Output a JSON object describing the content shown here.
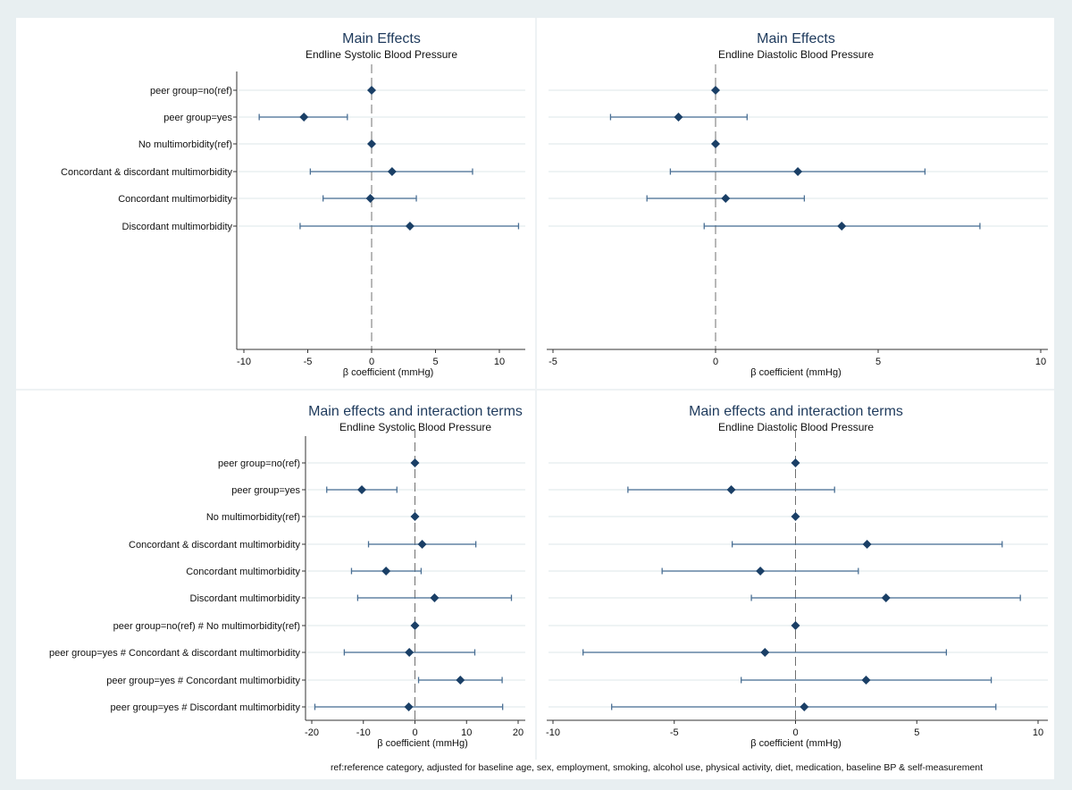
{
  "footnote": "ref:reference category, adjusted for baseline age, sex, employment, smoking, alcohol use, physical activity, diet, medication, baseline BP & self-measurement",
  "colors": {
    "marker": "#1a3f66",
    "ci": "#4a6f94",
    "background": "#e8eff1",
    "panel": "#ffffff",
    "refline": "#707070"
  },
  "chart_data": [
    {
      "type": "coefficient-plot",
      "title": "Main Effects",
      "subtitle": "Endline Systolic Blood Pressure",
      "xlabel": "β coefficient (mmHg)",
      "xlim": [
        -10.5,
        12
      ],
      "xticks": [
        -10,
        -5,
        0,
        5,
        10
      ],
      "reference_line": 0,
      "categories": [
        "peer group=no(ref)",
        "peer group=yes",
        "No multimorbidity(ref)",
        "Concordant & discordant multimorbidity",
        "Concordant multimorbidity",
        "Discordant multimorbidity"
      ],
      "estimate": [
        0,
        -5.3,
        0,
        1.6,
        -0.1,
        3.0
      ],
      "ci_low": [
        null,
        -8.8,
        null,
        -4.8,
        -3.8,
        -5.6
      ],
      "ci_high": [
        null,
        -1.9,
        null,
        7.9,
        3.5,
        11.5
      ]
    },
    {
      "type": "coefficient-plot",
      "title": "Main Effects",
      "subtitle": "Endline Diastolic Blood Pressure",
      "xlabel": "β coefficient (mmHg)",
      "xlim": [
        -5.2,
        10.2
      ],
      "xticks": [
        -5,
        0,
        5,
        10
      ],
      "reference_line": 0,
      "categories": [
        "peer group=no(ref)",
        "peer group=yes",
        "No multimorbidity(ref)",
        "Concordant & discordant multimorbidity",
        "Concordant multimorbidity",
        "Discordant multimorbidity"
      ],
      "estimate": [
        0,
        -1.14,
        0,
        2.53,
        0.31,
        3.88
      ],
      "ci_low": [
        null,
        -3.23,
        null,
        -1.39,
        -2.11,
        -0.35
      ],
      "ci_high": [
        null,
        0.97,
        null,
        6.44,
        2.73,
        8.13
      ]
    },
    {
      "type": "coefficient-plot",
      "title": "Main effects and interaction terms",
      "subtitle": "Endline Systolic Blood Pressure",
      "xlabel": "β coefficient (mmHg)",
      "xlim": [
        -21.3,
        21.2
      ],
      "xticks": [
        -20,
        -10,
        0,
        10,
        20
      ],
      "reference_line": 0,
      "categories": [
        "peer group=no(ref)",
        "peer group=yes",
        "No multimorbidity(ref)",
        "Concordant & discordant multimorbidity",
        "Concordant multimorbidity",
        "Discordant multimorbidity",
        "peer group=no(ref) # No multimorbidity(ref)",
        "peer group=yes # Concordant & discordant multimorbidity",
        "peer group=yes # Concordant multimorbidity",
        "peer group=yes # Discordant multimorbidity"
      ],
      "estimate": [
        0,
        -10.3,
        0,
        1.4,
        -5.6,
        3.8,
        0,
        -1.1,
        8.8,
        -1.2
      ],
      "ci_low": [
        null,
        -17.1,
        null,
        -9.0,
        -12.3,
        -11.1,
        null,
        -13.7,
        0.7,
        -19.4
      ],
      "ci_high": [
        null,
        -3.5,
        null,
        11.8,
        1.2,
        18.7,
        null,
        11.6,
        16.9,
        17.0
      ]
    },
    {
      "type": "coefficient-plot",
      "title": "Main effects and interaction terms",
      "subtitle": "Endline Diastolic Blood Pressure",
      "xlabel": "β coefficient (mmHg)",
      "xlim": [
        -10.3,
        10.3
      ],
      "xticks": [
        -10,
        -5,
        0,
        5,
        10
      ],
      "reference_line": 0,
      "categories": [
        "peer group=no(ref)",
        "peer group=yes",
        "No multimorbidity(ref)",
        "Concordant & discordant multimorbidity",
        "Concordant multimorbidity",
        "Discordant multimorbidity",
        "peer group=no(ref) # No multimorbidity(ref)",
        "peer group=yes # Concordant & discordant multimorbidity",
        "peer group=yes # Concordant multimorbidity",
        "peer group=yes # Discordant multimorbidity"
      ],
      "estimate": [
        0,
        -2.65,
        0,
        2.95,
        -1.45,
        3.73,
        0,
        -1.26,
        2.91,
        0.36
      ],
      "ci_low": [
        null,
        -6.91,
        null,
        -2.61,
        -5.5,
        -1.82,
        null,
        -8.76,
        -2.24,
        -7.58
      ],
      "ci_high": [
        null,
        1.61,
        null,
        8.52,
        2.59,
        9.27,
        null,
        6.22,
        8.07,
        8.26
      ]
    }
  ]
}
